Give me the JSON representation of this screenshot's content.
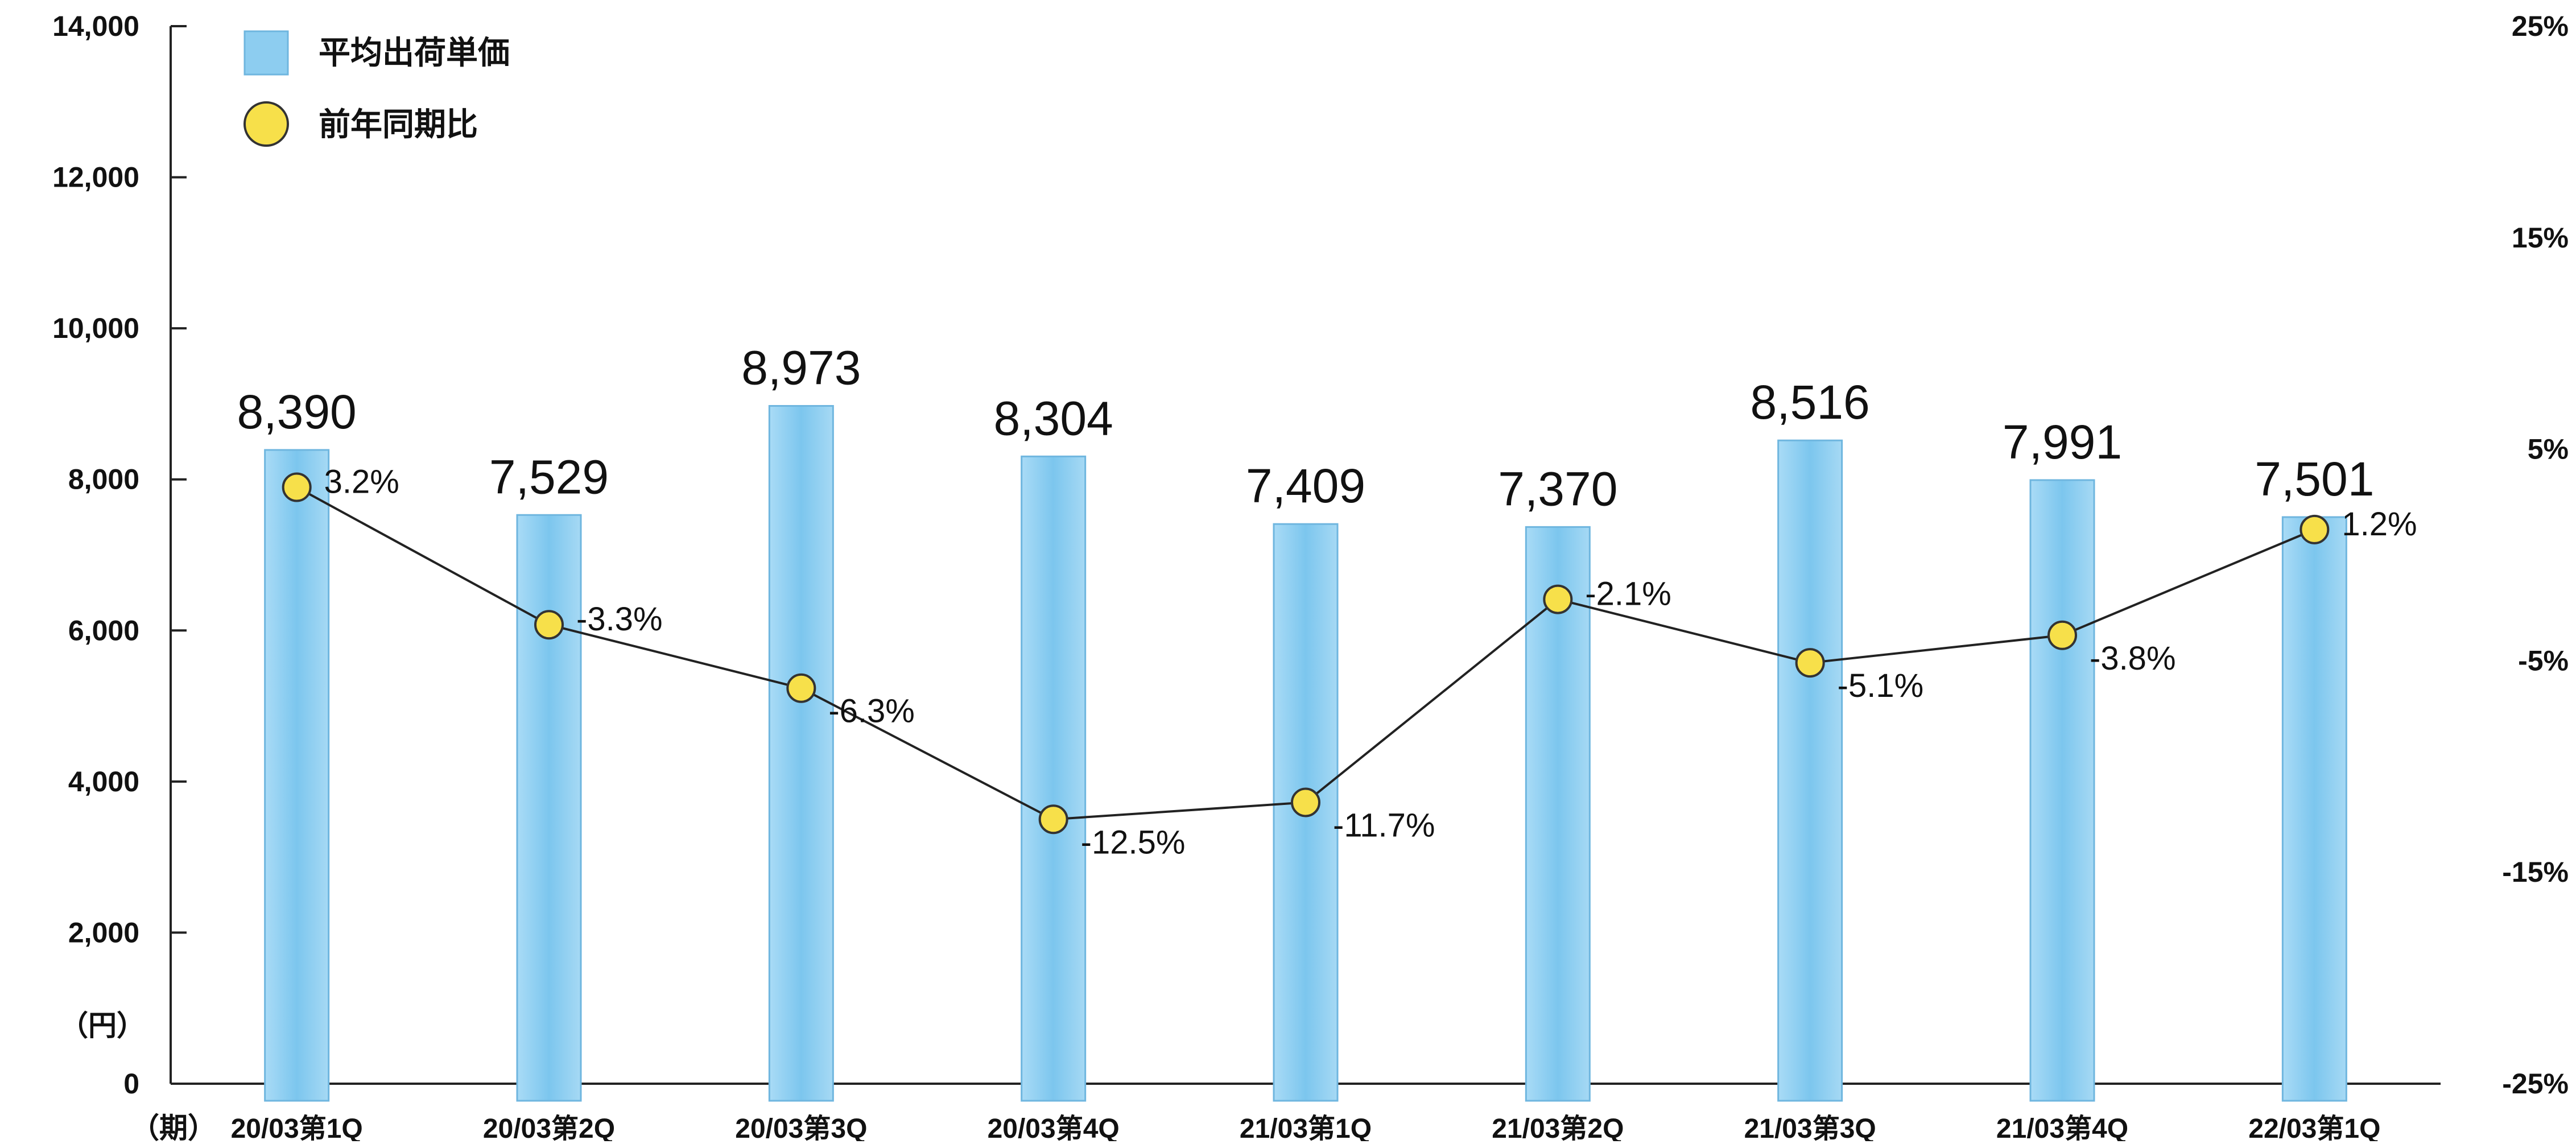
{
  "chart_data": {
    "type": "bar",
    "categories": [
      "20/03第1Q",
      "20/03第2Q",
      "20/03第3Q",
      "20/03第4Q",
      "21/03第1Q",
      "21/03第2Q",
      "21/03第3Q",
      "21/03第4Q",
      "22/03第1Q"
    ],
    "series": [
      {
        "name": "平均出荷単価",
        "type": "bar",
        "axis": "left",
        "values": [
          8390,
          7529,
          8973,
          8304,
          7409,
          7370,
          8516,
          7991,
          7501
        ],
        "labels": [
          "8,390",
          "7,529",
          "8,973",
          "8,304",
          "7,409",
          "7,370",
          "8,516",
          "7,991",
          "7,501"
        ],
        "color": "#8dcdf0"
      },
      {
        "name": "前年同期比",
        "type": "line",
        "axis": "right",
        "values": [
          3.2,
          -3.3,
          -6.3,
          -12.5,
          -11.7,
          -2.1,
          -5.1,
          -3.8,
          1.2
        ],
        "labels": [
          "3.2%",
          "-3.3%",
          "-6.3%",
          "-12.5%",
          "-11.7%",
          "-2.1%",
          "-5.1%",
          "-3.8%",
          "1.2%"
        ],
        "color": "#f7e04a"
      }
    ],
    "y_left": {
      "lim": [
        0,
        14000
      ],
      "ticks": [
        "0",
        "2,000",
        "4,000",
        "6,000",
        "8,000",
        "10,000",
        "12,000",
        "14,000"
      ],
      "unit": "（円）"
    },
    "y_right": {
      "lim": [
        -25,
        25
      ],
      "ticks": [
        "-25%",
        "-15%",
        "-5%",
        "5%",
        "15%",
        "25%"
      ]
    },
    "x_unit": "（期）",
    "legend": {
      "position": "top-left"
    },
    "grid": false
  }
}
